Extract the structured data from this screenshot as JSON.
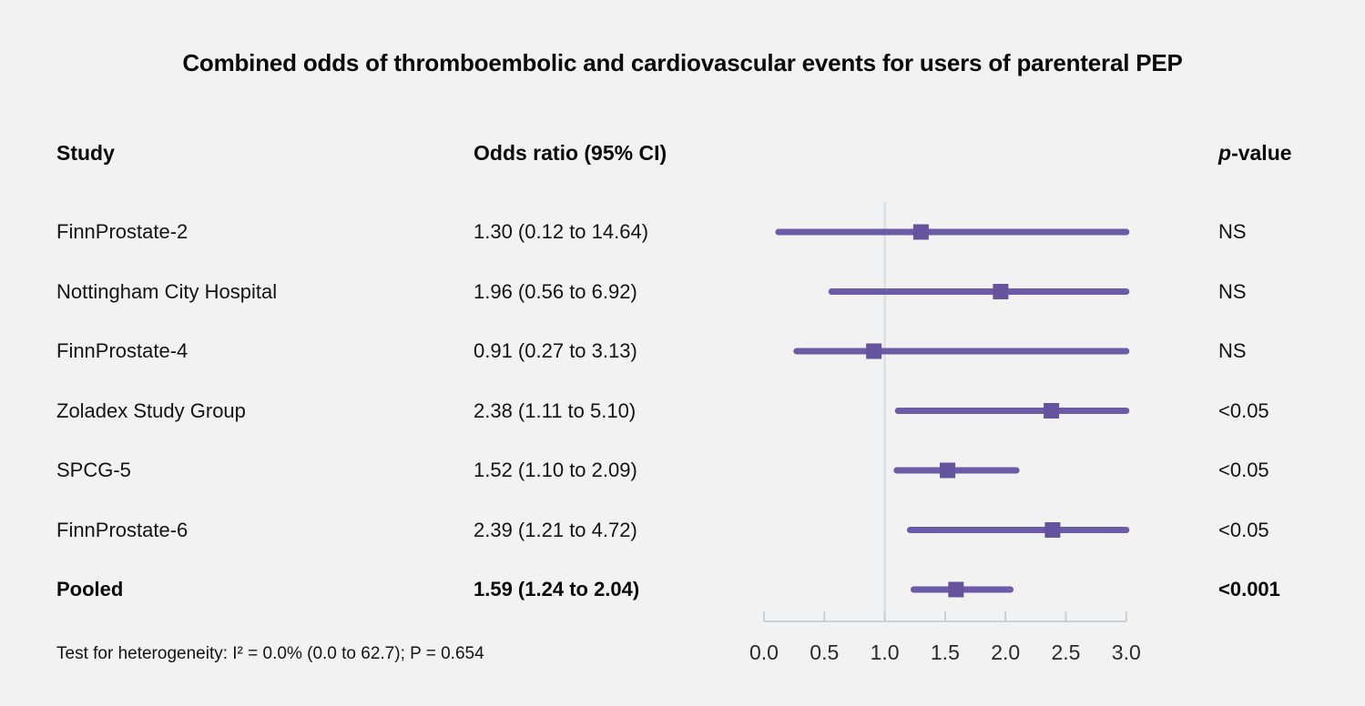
{
  "title": "Combined odds of thromboembolic and cardiovascular events for users of parenteral PEP",
  "columns": {
    "study": "Study",
    "odds_ratio": "Odds ratio (95% CI)",
    "p_italic": "p",
    "p_rest": "-value"
  },
  "footnote": "Test for heterogeneity: I² = 0.0% (0.0 to 62.7); P = 0.654",
  "colors": {
    "background": "#f2f2f2",
    "ci_line": "#6c5ba6",
    "marker": "#66539e",
    "axis_line": "#c7ccd1",
    "reference_line": "#dde1e6",
    "text": "#141414"
  },
  "chart_data": {
    "type": "forest",
    "title": "Combined odds of thromboembolic and cardiovascular events for users of parenteral PEP",
    "xlabel": "",
    "xlim": [
      0,
      3
    ],
    "x_ticks": [
      0.0,
      0.5,
      1.0,
      1.5,
      2.0,
      2.5,
      3.0
    ],
    "x_tick_labels": [
      "0.0",
      "0.5",
      "1.0",
      "1.5",
      "2.0",
      "2.5",
      "3.0"
    ],
    "reference_line_x": 1.0,
    "grid": false,
    "rows": [
      {
        "study": "FinnProstate-2",
        "estimate": 1.3,
        "ci_low": 0.12,
        "ci_high": 14.64,
        "or_ci_text": "1.30 (0.12 to 14.64)",
        "p_value": "NS",
        "bold": false
      },
      {
        "study": "Nottingham City Hospital",
        "estimate": 1.96,
        "ci_low": 0.56,
        "ci_high": 6.92,
        "or_ci_text": "1.96 (0.56 to 6.92)",
        "p_value": "NS",
        "bold": false
      },
      {
        "study": "FinnProstate-4",
        "estimate": 0.91,
        "ci_low": 0.27,
        "ci_high": 3.13,
        "or_ci_text": "0.91 (0.27 to 3.13)",
        "p_value": "NS",
        "bold": false
      },
      {
        "study": "Zoladex Study Group",
        "estimate": 2.38,
        "ci_low": 1.11,
        "ci_high": 5.1,
        "or_ci_text": "2.38 (1.11 to 5.10)",
        "p_value": "<0.05",
        "bold": false
      },
      {
        "study": "SPCG-5",
        "estimate": 1.52,
        "ci_low": 1.1,
        "ci_high": 2.09,
        "or_ci_text": "1.52 (1.10 to 2.09)",
        "p_value": "<0.05",
        "bold": false
      },
      {
        "study": "FinnProstate-6",
        "estimate": 2.39,
        "ci_low": 1.21,
        "ci_high": 4.72,
        "or_ci_text": "2.39 (1.21 to 4.72)",
        "p_value": "<0.05",
        "bold": false
      },
      {
        "study": "Pooled",
        "estimate": 1.59,
        "ci_low": 1.24,
        "ci_high": 2.04,
        "or_ci_text": "1.59 (1.24 to 2.04)",
        "p_value": "<0.001",
        "bold": true
      }
    ],
    "heterogeneity_note": "Test for heterogeneity: I² = 0.0% (0.0 to 62.7); P = 0.654"
  }
}
